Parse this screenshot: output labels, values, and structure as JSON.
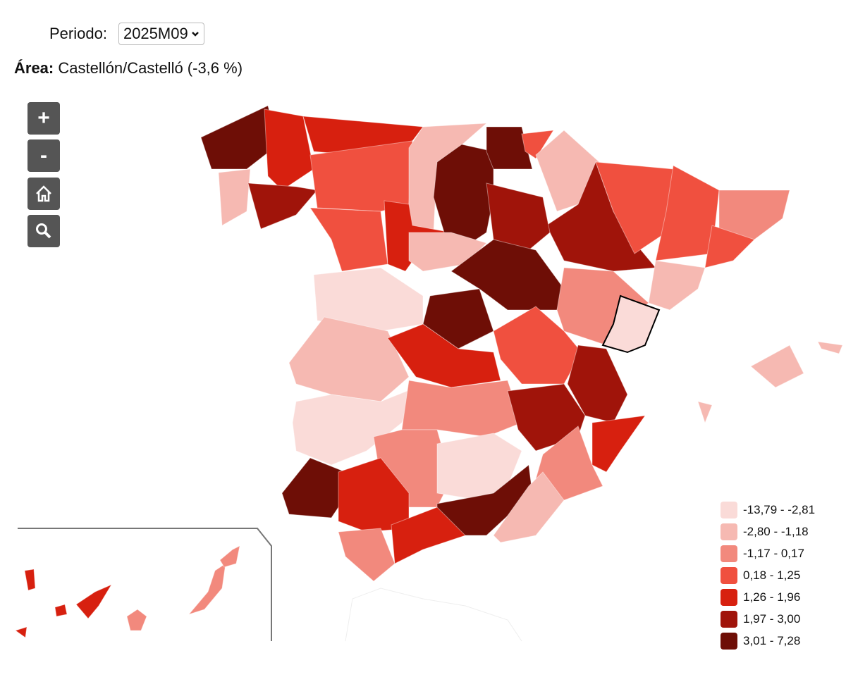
{
  "periodo": {
    "label": "Periodo:",
    "value": "2025M09"
  },
  "area": {
    "label": "Área:",
    "value": "Castellón/Castelló (-3,6 %)"
  },
  "controls": {
    "zoom_in": "+",
    "zoom_out": "-",
    "home": "home-icon",
    "search": "search-icon"
  },
  "legend": [
    {
      "range": "-13,79 - -2,81",
      "color": "#fadbd8"
    },
    {
      "range": "-2,80 - -1,18",
      "color": "#f6b9b2"
    },
    {
      "range": "-1,17 - 0,17",
      "color": "#f2897d"
    },
    {
      "range": "0,18 - 1,25",
      "color": "#f0503f"
    },
    {
      "range": "1,26 - 1,96",
      "color": "#d7200f"
    },
    {
      "range": "1,97 - 3,00",
      "color": "#a0140a"
    },
    {
      "range": "3,01 - 7,28",
      "color": "#6e0e06"
    }
  ]
}
